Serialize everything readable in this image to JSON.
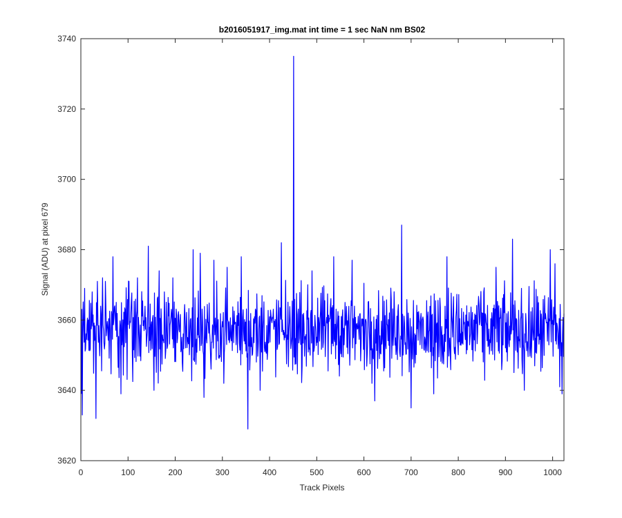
{
  "chart_data": {
    "type": "line",
    "title": "b2016051917_img.mat int time = 1 sec  NaN nm BS02",
    "xlabel": "Track Pixels",
    "ylabel": "Signal (ADU) at pixel 679",
    "xlim": [
      0,
      1024
    ],
    "ylim": [
      3620,
      3740
    ],
    "x_ticks": [
      0,
      100,
      200,
      300,
      400,
      500,
      600,
      700,
      800,
      900,
      1000
    ],
    "y_ticks": [
      3620,
      3640,
      3660,
      3680,
      3700,
      3720,
      3740
    ],
    "x_tick_labels": [
      "0",
      "100",
      "200",
      "300",
      "400",
      "500",
      "600",
      "700",
      "800",
      "900",
      "1000"
    ],
    "y_tick_labels": [
      "3620",
      "3640",
      "3660",
      "3680",
      "3700",
      "3720",
      "3740"
    ],
    "grid": false,
    "box": true,
    "line_color": "#0000ff",
    "series": [
      {
        "n_points": 1024,
        "x_start": 1,
        "x_step": 1,
        "baseline": 3657,
        "noise_amplitude": 9,
        "extrema": [
          {
            "x": 1,
            "y": 3639
          },
          {
            "x": 3,
            "y": 3633
          },
          {
            "x": 8,
            "y": 3669
          },
          {
            "x": 32,
            "y": 3632
          },
          {
            "x": 35,
            "y": 3671
          },
          {
            "x": 52,
            "y": 3671
          },
          {
            "x": 68,
            "y": 3678
          },
          {
            "x": 85,
            "y": 3639
          },
          {
            "x": 102,
            "y": 3671
          },
          {
            "x": 120,
            "y": 3672
          },
          {
            "x": 143,
            "y": 3681
          },
          {
            "x": 155,
            "y": 3640
          },
          {
            "x": 166,
            "y": 3674
          },
          {
            "x": 195,
            "y": 3672
          },
          {
            "x": 238,
            "y": 3680
          },
          {
            "x": 253,
            "y": 3679
          },
          {
            "x": 261,
            "y": 3638
          },
          {
            "x": 282,
            "y": 3677
          },
          {
            "x": 310,
            "y": 3675
          },
          {
            "x": 340,
            "y": 3678
          },
          {
            "x": 354,
            "y": 3629
          },
          {
            "x": 380,
            "y": 3640
          },
          {
            "x": 425,
            "y": 3682
          },
          {
            "x": 451,
            "y": 3735
          },
          {
            "x": 490,
            "y": 3674
          },
          {
            "x": 536,
            "y": 3678
          },
          {
            "x": 575,
            "y": 3677
          },
          {
            "x": 623,
            "y": 3637
          },
          {
            "x": 680,
            "y": 3687
          },
          {
            "x": 700,
            "y": 3635
          },
          {
            "x": 748,
            "y": 3639
          },
          {
            "x": 776,
            "y": 3678
          },
          {
            "x": 880,
            "y": 3675
          },
          {
            "x": 915,
            "y": 3683
          },
          {
            "x": 940,
            "y": 3640
          },
          {
            "x": 995,
            "y": 3680
          },
          {
            "x": 1005,
            "y": 3676
          },
          {
            "x": 1015,
            "y": 3641
          },
          {
            "x": 1020,
            "y": 3639
          }
        ]
      }
    ]
  }
}
